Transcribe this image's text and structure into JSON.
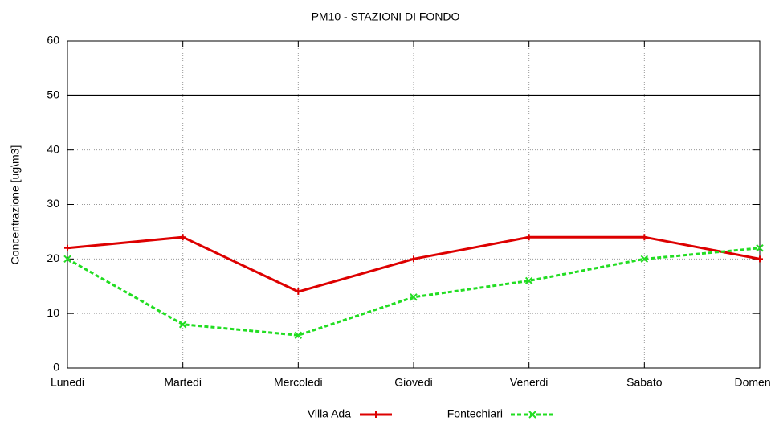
{
  "chart_data": {
    "type": "line",
    "title": "PM10 - STAZIONI DI FONDO",
    "y_label": "Concentrazione [ug\\m3]",
    "categories": [
      "Lunedi",
      "Martedi",
      "Mercoledi",
      "Giovedi",
      "Venerdi",
      "Sabato",
      "Domenica"
    ],
    "series": [
      {
        "name": "Villa Ada",
        "color": "#dd0000",
        "values": [
          22,
          24,
          14,
          20,
          24,
          24,
          20
        ]
      },
      {
        "name": "Fontechiari",
        "color": "#22dd22",
        "values": [
          20,
          8,
          6,
          13,
          16,
          20,
          22
        ]
      }
    ],
    "ylim": [
      0,
      60
    ],
    "yticks": [
      0,
      10,
      20,
      30,
      40,
      50,
      60
    ],
    "grid": true,
    "reference_line": 50
  }
}
